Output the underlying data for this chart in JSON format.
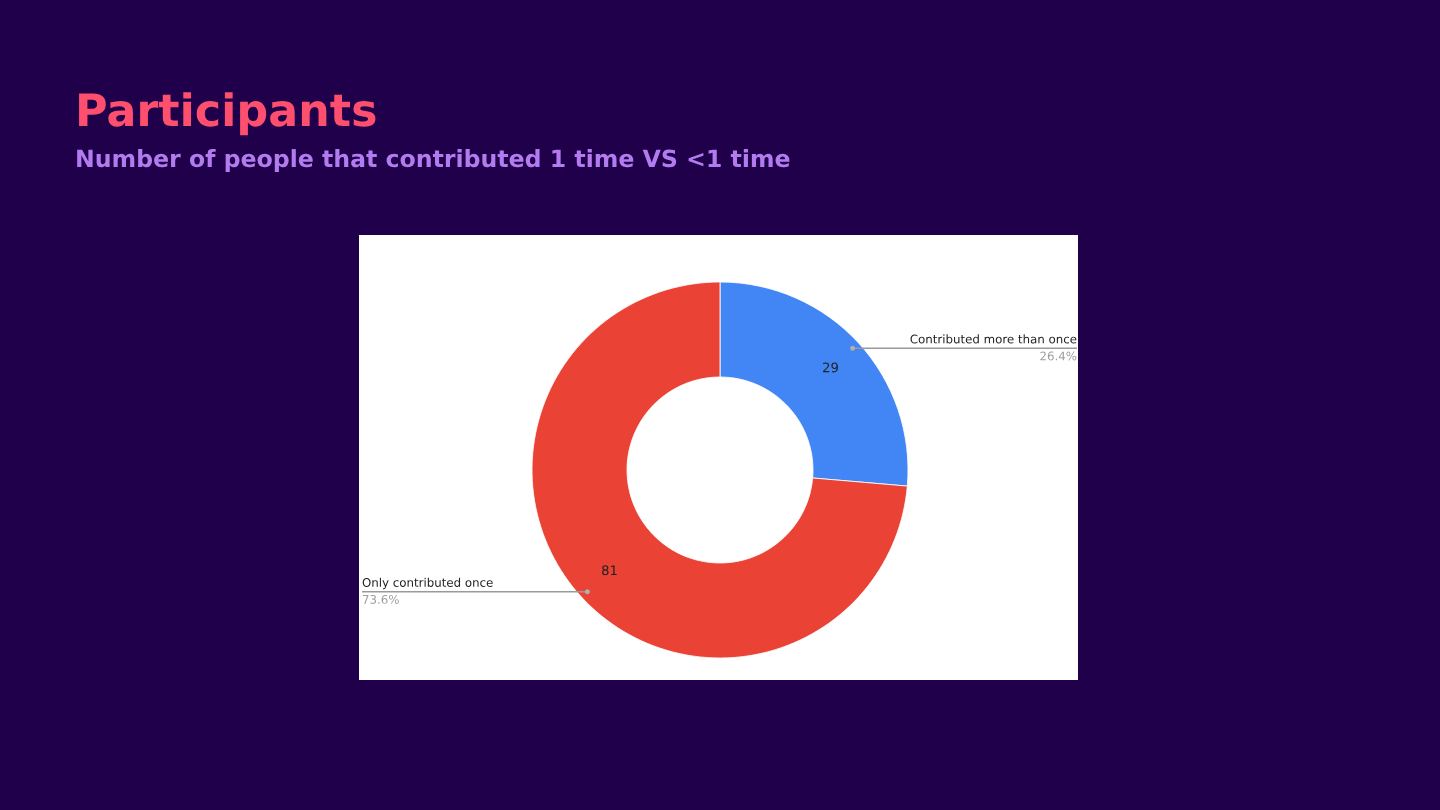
{
  "chart_data": {
    "type": "donut",
    "title": "Participants",
    "subtitle": "Number of people that contributed 1 time VS <1 time",
    "categories": [
      "Contributed more than once",
      "Only contributed once"
    ],
    "values": [
      29,
      81
    ],
    "colors": [
      "#4285f4",
      "#ea4335"
    ],
    "data_labels": true,
    "annotations": [
      "26.4%",
      "73.6%"
    ]
  }
}
